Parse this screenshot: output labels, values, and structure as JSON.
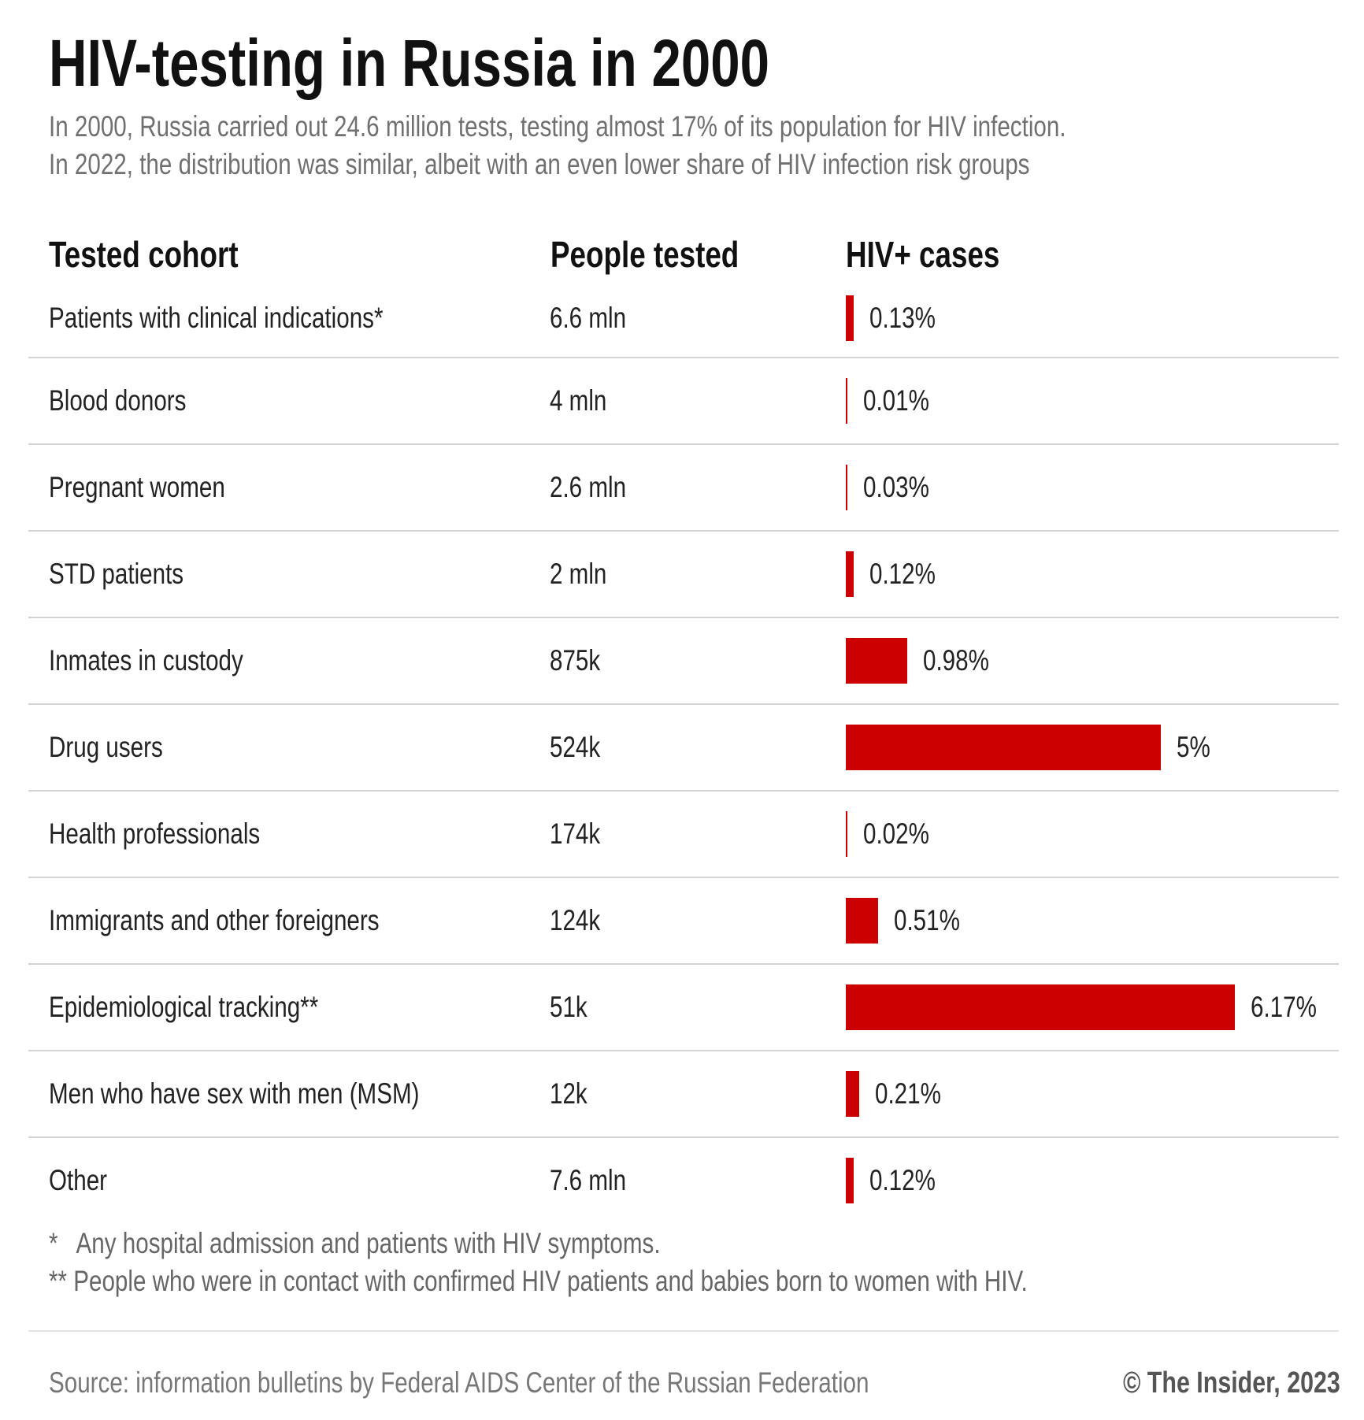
{
  "chart_data": {
    "type": "table",
    "title": "HIV-testing in Russia in 2000",
    "subtitle": [
      "In 2000, Russia carried out 24.6 million tests, testing almost 17% of its population for HIV infection.",
      "In 2022, the distribution was similar, albeit with an even lower share of HIV infection risk groups"
    ],
    "columns": [
      "Tested cohort",
      "People tested",
      "HIV+ cases"
    ],
    "bar_color": "#cc0000",
    "rows": [
      {
        "cohort": "Patients with clinical indications*",
        "tested": "6.6 mln",
        "hiv_pct": 0.13,
        "hiv_label": "0.13%"
      },
      {
        "cohort": "Blood donors",
        "tested": "4 mln",
        "hiv_pct": 0.01,
        "hiv_label": "0.01%"
      },
      {
        "cohort": "Pregnant women",
        "tested": "2.6 mln",
        "hiv_pct": 0.03,
        "hiv_label": "0.03%"
      },
      {
        "cohort": "STD patients",
        "tested": "2 mln",
        "hiv_pct": 0.12,
        "hiv_label": "0.12%"
      },
      {
        "cohort": "Inmates in custody",
        "tested": "875k",
        "hiv_pct": 0.98,
        "hiv_label": "0.98%"
      },
      {
        "cohort": "Drug users",
        "tested": "524k",
        "hiv_pct": 5,
        "hiv_label": "5%"
      },
      {
        "cohort": "Health professionals",
        "tested": "174k",
        "hiv_pct": 0.02,
        "hiv_label": "0.02%"
      },
      {
        "cohort": "Immigrants and other foreigners",
        "tested": "124k",
        "hiv_pct": 0.51,
        "hiv_label": "0.51%"
      },
      {
        "cohort": "Epidemiological tracking**",
        "tested": "51k",
        "hiv_pct": 6.17,
        "hiv_label": "6.17%"
      },
      {
        "cohort": "Men who have sex with men (MSM)",
        "tested": "12k",
        "hiv_pct": 0.21,
        "hiv_label": "0.21%"
      },
      {
        "cohort": "Other",
        "tested": "7.6 mln",
        "hiv_pct": 0.12,
        "hiv_label": "0.12%"
      }
    ],
    "footnotes": [
      "*   Any hospital admission and patients with HIV symptoms.",
      "** People who were in contact with confirmed HIV patients and babies born to women with HIV."
    ],
    "source": "Source: information bulletins by Federal AIDS Center of the Russian Federation",
    "credit": "© The Insider, 2023"
  }
}
